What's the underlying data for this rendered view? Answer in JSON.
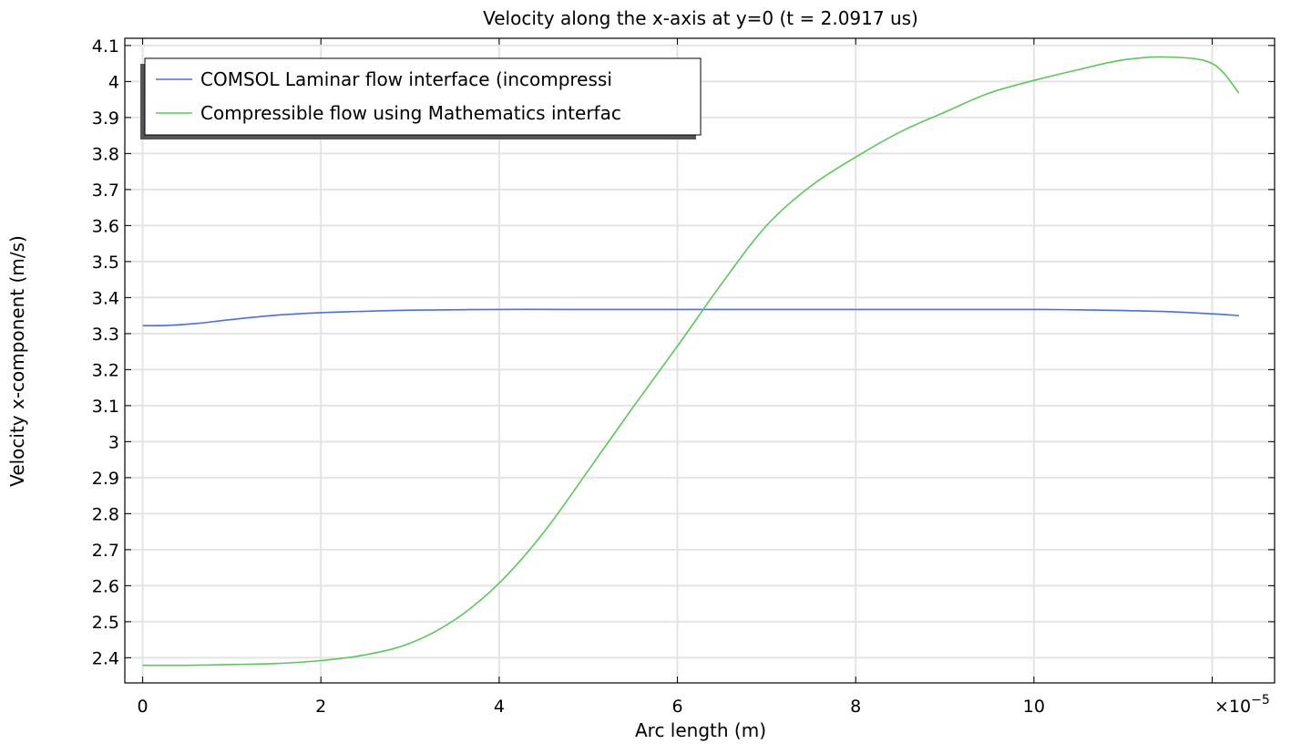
{
  "chart_data": {
    "type": "line",
    "title": "Velocity along the x-axis at y=0 (t = 2.0917 us)",
    "xlabel": "Arc length (m)",
    "ylabel": "Velocity x-component  (m/s)",
    "x_multiplier_label": "×10",
    "x_multiplier_exponent": "−5",
    "xlim": [
      -0.2,
      12.7
    ],
    "ylim": [
      2.33,
      4.12
    ],
    "x_ticks": [
      0,
      2,
      4,
      6,
      8,
      10
    ],
    "x_tick_labels": [
      "0",
      "2",
      "4",
      "6",
      "8",
      "10"
    ],
    "y_ticks": [
      2.4,
      2.5,
      2.6,
      2.7,
      2.8,
      2.9,
      3.0,
      3.1,
      3.2,
      3.3,
      3.4,
      3.5,
      3.6,
      3.7,
      3.8,
      3.9,
      4.0,
      4.1
    ],
    "y_tick_labels": [
      "2.4",
      "2.5",
      "2.6",
      "2.7",
      "2.8",
      "2.9",
      "3",
      "3.1",
      "3.2",
      "3.3",
      "3.4",
      "3.5",
      "3.6",
      "3.7",
      "3.8",
      "3.9",
      "4",
      "4.1"
    ],
    "grid": true,
    "legend_position": "top-left",
    "series": [
      {
        "name": "COMSOL Laminar flow interface (incompressi",
        "color": "#4a6cf0",
        "x": [
          0,
          0.3,
          0.6,
          1,
          1.5,
          2,
          2.5,
          3,
          4,
          5,
          6,
          7,
          8,
          9,
          10,
          10.5,
          11,
          11.5,
          12,
          12.3
        ],
        "y": [
          3.322,
          3.323,
          3.328,
          3.339,
          3.351,
          3.358,
          3.362,
          3.365,
          3.367,
          3.367,
          3.367,
          3.367,
          3.367,
          3.367,
          3.367,
          3.366,
          3.364,
          3.361,
          3.355,
          3.35
        ]
      },
      {
        "name": "Compressible flow using Mathematics interfac",
        "color": "#5ac85a",
        "x": [
          0,
          0.5,
          1,
          1.5,
          2,
          2.5,
          3,
          3.5,
          4,
          4.5,
          5,
          5.5,
          6,
          6.5,
          7,
          7.5,
          8,
          8.5,
          9,
          9.5,
          10,
          10.5,
          11,
          11.5,
          12,
          12.3
        ],
        "y": [
          2.379,
          2.379,
          2.381,
          2.384,
          2.392,
          2.408,
          2.44,
          2.505,
          2.607,
          2.748,
          2.92,
          3.095,
          3.265,
          3.44,
          3.6,
          3.71,
          3.79,
          3.86,
          3.915,
          3.968,
          4.003,
          4.033,
          4.06,
          4.068,
          4.05,
          3.968
        ]
      }
    ]
  }
}
